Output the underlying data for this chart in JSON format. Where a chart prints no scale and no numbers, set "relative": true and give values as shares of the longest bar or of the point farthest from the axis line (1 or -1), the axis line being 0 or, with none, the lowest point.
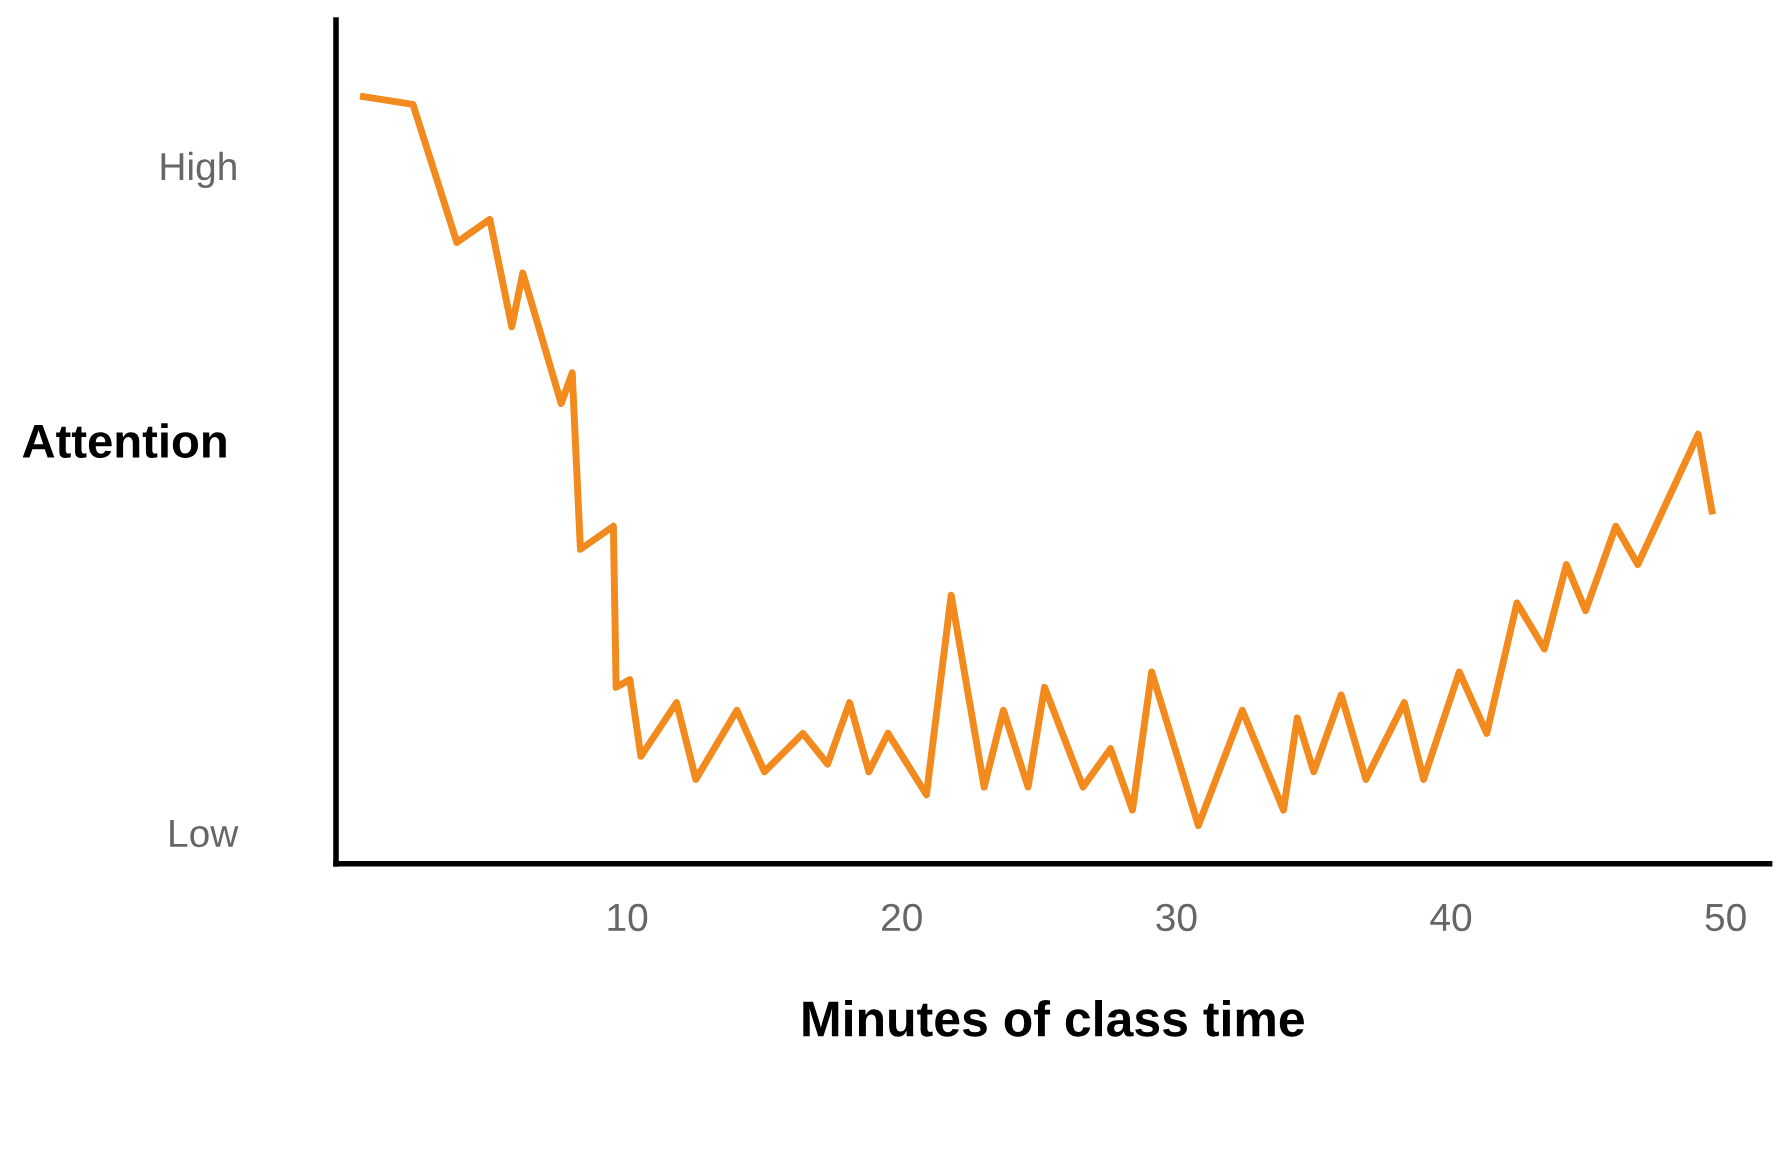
{
  "chart_data": {
    "type": "line",
    "relative": true,
    "xlabel": "Minutes of class time",
    "ylabel": "Attention",
    "xlim": [
      -0.6,
      51.6
    ],
    "xticks": [
      10,
      20,
      30,
      40,
      50
    ],
    "annotations": [
      "High",
      "Low"
    ],
    "grid": false,
    "marker": "none",
    "line_style": "solid",
    "series": [
      {
        "color": "#f28a1e",
        "x": [
          0.4,
          2.2,
          3.8,
          5.0,
          5.8,
          6.2,
          7.6,
          8.0,
          8.3,
          9.5,
          9.6,
          10.1,
          10.5,
          11.8,
          12.5,
          14.0,
          15.0,
          16.4,
          17.3,
          18.1,
          18.8,
          19.5,
          20.9,
          21.8,
          23.0,
          23.7,
          24.6,
          25.2,
          26.6,
          27.6,
          28.4,
          29.1,
          30.8,
          32.4,
          33.9,
          34.4,
          35.0,
          36.0,
          36.9,
          38.3,
          39.0,
          40.3,
          41.3,
          42.4,
          43.4,
          44.2,
          44.9,
          46.0,
          46.8,
          49.0,
          49.5
        ],
        "values": [
          1.0,
          0.99,
          0.81,
          0.84,
          0.7,
          0.77,
          0.6,
          0.64,
          0.41,
          0.44,
          0.23,
          0.24,
          0.14,
          0.21,
          0.11,
          0.2,
          0.12,
          0.17,
          0.13,
          0.21,
          0.12,
          0.17,
          0.09,
          0.35,
          0.1,
          0.2,
          0.1,
          0.23,
          0.1,
          0.15,
          0.07,
          0.25,
          0.05,
          0.2,
          0.07,
          0.19,
          0.12,
          0.22,
          0.11,
          0.21,
          0.11,
          0.25,
          0.17,
          0.34,
          0.28,
          0.39,
          0.33,
          0.44,
          0.39,
          0.56,
          0.46
        ]
      }
    ]
  }
}
